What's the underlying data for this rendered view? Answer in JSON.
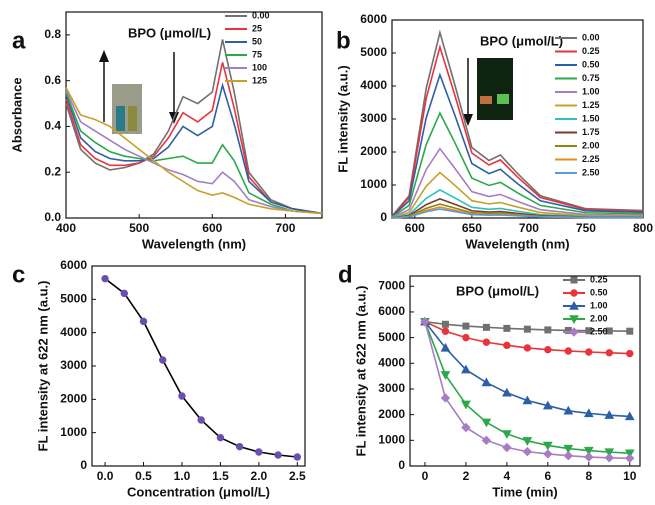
{
  "chart_data": [
    {
      "type": "line",
      "panel_label": "a",
      "annotation": "BPO (μmol/L)",
      "xlabel": "Wavelength (nm)",
      "ylabel": "Absorbance",
      "x": [
        400,
        420,
        440,
        460,
        480,
        500,
        520,
        540,
        560,
        580,
        600,
        614,
        630,
        650,
        680,
        710,
        750
      ],
      "series": [
        {
          "name": "0.00",
          "color": "#707070",
          "values": [
            0.5,
            0.3,
            0.24,
            0.21,
            0.22,
            0.24,
            0.28,
            0.38,
            0.53,
            0.5,
            0.55,
            0.78,
            0.55,
            0.2,
            0.08,
            0.04,
            0.02
          ]
        },
        {
          "name": "25",
          "color": "#e8343a",
          "values": [
            0.52,
            0.32,
            0.26,
            0.23,
            0.23,
            0.24,
            0.27,
            0.35,
            0.46,
            0.42,
            0.47,
            0.68,
            0.48,
            0.18,
            0.07,
            0.04,
            0.02
          ]
        },
        {
          "name": "50",
          "color": "#2c5fa8",
          "values": [
            0.54,
            0.35,
            0.29,
            0.26,
            0.25,
            0.25,
            0.26,
            0.31,
            0.4,
            0.36,
            0.4,
            0.58,
            0.41,
            0.16,
            0.07,
            0.04,
            0.02
          ]
        },
        {
          "name": "75",
          "color": "#2aa84a",
          "values": [
            0.55,
            0.38,
            0.33,
            0.29,
            0.27,
            0.26,
            0.25,
            0.26,
            0.27,
            0.24,
            0.24,
            0.32,
            0.25,
            0.11,
            0.06,
            0.03,
            0.02
          ]
        },
        {
          "name": "100",
          "color": "#a77dc2",
          "values": [
            0.56,
            0.42,
            0.38,
            0.34,
            0.3,
            0.27,
            0.24,
            0.21,
            0.19,
            0.16,
            0.15,
            0.2,
            0.16,
            0.08,
            0.05,
            0.03,
            0.02
          ]
        },
        {
          "name": "125",
          "color": "#c8a028",
          "values": [
            0.57,
            0.45,
            0.43,
            0.4,
            0.35,
            0.3,
            0.25,
            0.2,
            0.16,
            0.12,
            0.1,
            0.11,
            0.09,
            0.06,
            0.04,
            0.03,
            0.02
          ]
        }
      ],
      "xlim": [
        400,
        750
      ],
      "xticks": [
        400,
        500,
        600,
        700
      ],
      "ylim": [
        0,
        0.9
      ],
      "yticks": [
        {
          "value": 0,
          "label": "0.0"
        },
        0.2,
        0.4,
        0.6,
        0.8
      ],
      "legend": "upper right",
      "grid": false
    },
    {
      "type": "line",
      "panel_label": "b",
      "annotation": "BPO (μmol/L)",
      "xlabel": "Wavelength (nm)",
      "ylabel": "FL intensity (a.u.)",
      "x": [
        580,
        595,
        610,
        622,
        635,
        650,
        665,
        675,
        690,
        710,
        750,
        800
      ],
      "series": [
        {
          "name": "0.00",
          "color": "#707070",
          "values": [
            56,
            674,
            3934,
            5620,
            4046,
            2136,
            1742,
            1911,
            1349,
            674,
            281,
            225
          ]
        },
        {
          "name": "0.25",
          "color": "#e8343a",
          "values": [
            52,
            622,
            3626,
            5180,
            3730,
            1968,
            1606,
            1761,
            1243,
            622,
            259,
            207
          ]
        },
        {
          "name": "0.50",
          "color": "#2c5fa8",
          "values": [
            43,
            521,
            3038,
            4340,
            3125,
            1649,
            1345,
            1476,
            1042,
            521,
            217,
            174
          ]
        },
        {
          "name": "0.75",
          "color": "#2aa84a",
          "values": [
            32,
            382,
            2226,
            3180,
            2290,
            1208,
            986,
            1081,
            763,
            382,
            159,
            127
          ]
        },
        {
          "name": "1.00",
          "color": "#a77dc2",
          "values": [
            21,
            252,
            1470,
            2100,
            1512,
            798,
            651,
            714,
            504,
            252,
            105,
            84
          ]
        },
        {
          "name": "1.25",
          "color": "#c8a028",
          "values": [
            14,
            166,
            966,
            1380,
            994,
            524,
            428,
            469,
            331,
            166,
            69,
            55
          ]
        },
        {
          "name": "1.50",
          "color": "#2cc0c0",
          "values": [
            9,
            102,
            595,
            850,
            612,
            323,
            264,
            289,
            204,
            102,
            43,
            34
          ]
        },
        {
          "name": "1.75",
          "color": "#7a3b2e",
          "values": [
            6,
            70,
            406,
            580,
            418,
            220,
            180,
            197,
            139,
            70,
            29,
            23
          ]
        },
        {
          "name": "2.00",
          "color": "#8a8a10",
          "values": [
            4,
            50,
            294,
            420,
            302,
            160,
            130,
            143,
            101,
            50,
            21,
            17
          ]
        },
        {
          "name": "2.25",
          "color": "#e88a20",
          "values": [
            3,
            40,
            231,
            330,
            238,
            125,
            102,
            112,
            79,
            40,
            17,
            13
          ]
        },
        {
          "name": "2.50",
          "color": "#5a9ad8",
          "values": [
            3,
            32,
            189,
            270,
            194,
            103,
            84,
            92,
            65,
            32,
            14,
            11
          ]
        }
      ],
      "xlim": [
        580,
        800
      ],
      "xticks": [
        600,
        650,
        700,
        750,
        800
      ],
      "ylim": [
        0,
        6000
      ],
      "yticks": [
        0,
        1000,
        2000,
        3000,
        4000,
        5000,
        6000
      ],
      "legend": "upper right",
      "grid": false
    },
    {
      "type": "line",
      "panel_label": "c",
      "xlabel": "Concentration (μmol/L)",
      "ylabel": "FL intensity  at 622 nm (a.u.)",
      "x": [
        0,
        0.25,
        0.5,
        0.75,
        1,
        1.25,
        1.5,
        1.75,
        2,
        2.25,
        2.5
      ],
      "series": [
        {
          "color": "#000000",
          "marker": "circle",
          "marker_color": "#6a4fb0",
          "values": [
            5620,
            5180,
            4340,
            3180,
            2100,
            1380,
            850,
            580,
            420,
            330,
            270
          ]
        }
      ],
      "xlim": [
        -0.17,
        2.6
      ],
      "xticks": [
        {
          "value": 0,
          "label": "0.0"
        },
        0.5,
        {
          "value": 1,
          "label": "1.0"
        },
        1.5,
        {
          "value": 2,
          "label": "2.0"
        },
        2.5
      ],
      "ylim": [
        0,
        6000
      ],
      "yticks": [
        0,
        1000,
        2000,
        3000,
        4000,
        5000,
        6000
      ],
      "grid": false
    },
    {
      "type": "line",
      "panel_label": "d",
      "annotation": "BPO (μmol/L)",
      "xlabel": "Time (min)",
      "ylabel": "FL intensity at 622 nm (a.u.)",
      "x": [
        0,
        1,
        2,
        3,
        4,
        5,
        6,
        7,
        8,
        9,
        10
      ],
      "series": [
        {
          "name": "0.25",
          "color": "#707070",
          "marker": "square",
          "values": [
            5620,
            5520,
            5450,
            5400,
            5360,
            5330,
            5300,
            5280,
            5270,
            5260,
            5250
          ]
        },
        {
          "name": "0.50",
          "color": "#e8343a",
          "marker": "circle",
          "values": [
            5620,
            5250,
            5000,
            4820,
            4700,
            4600,
            4530,
            4480,
            4440,
            4410,
            4380
          ]
        },
        {
          "name": "1.00",
          "color": "#2c5fa8",
          "marker": "triangle-up",
          "values": [
            5620,
            4600,
            3750,
            3250,
            2850,
            2550,
            2350,
            2150,
            2050,
            1980,
            1930
          ]
        },
        {
          "name": "2.00",
          "color": "#2aa84a",
          "marker": "triangle-down",
          "values": [
            5620,
            3550,
            2400,
            1700,
            1250,
            980,
            800,
            680,
            600,
            540,
            500
          ]
        },
        {
          "name": "2.50",
          "color": "#a77dc2",
          "marker": "diamond",
          "values": [
            5620,
            2650,
            1500,
            1000,
            720,
            560,
            470,
            400,
            350,
            320,
            300
          ]
        }
      ],
      "xlim": [
        -0.73,
        10.5
      ],
      "xticks": [
        0,
        2,
        4,
        6,
        8,
        10
      ],
      "ylim": [
        0,
        7400
      ],
      "yticks": [
        0,
        1000,
        2000,
        3000,
        4000,
        5000,
        6000,
        7000
      ],
      "legend": "upper right",
      "grid": false
    }
  ]
}
